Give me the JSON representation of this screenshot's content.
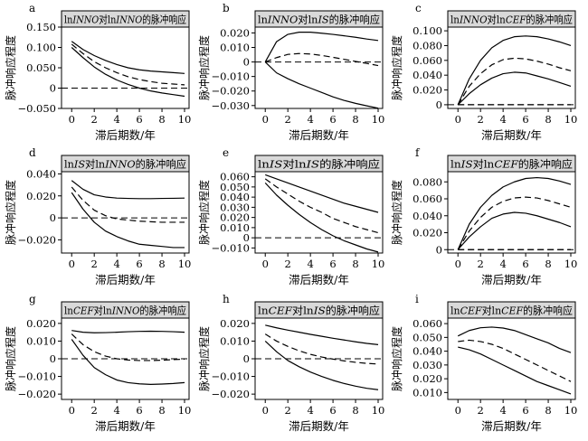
{
  "figure": {
    "ylabel": "脉冲响应程度",
    "xlabel": "滞后期数/年",
    "xticks": [
      0,
      2,
      4,
      6,
      8,
      10
    ]
  },
  "chart_data": [
    {
      "type": "line",
      "letter": "a",
      "title": "lnINNO对lnINNO的脉冲响应",
      "title_parts": [
        {
          "t": "ln",
          "i": false
        },
        {
          "t": "INNO",
          "i": true
        },
        {
          "t": "对ln",
          "i": false
        },
        {
          "t": "INNO",
          "i": true
        },
        {
          "t": "的脉冲响应",
          "i": false
        }
      ],
      "ylim": [
        -0.05,
        0.15
      ],
      "yticks": [
        -0.05,
        0,
        0.05,
        0.1,
        0.15
      ],
      "ytick_labels": [
        "−0.050",
        "0",
        "0.050",
        "0.100",
        "0.150"
      ],
      "x": [
        0,
        1,
        2,
        3,
        4,
        5,
        6,
        7,
        8,
        9,
        10
      ],
      "series": [
        {
          "role": "upper",
          "values": [
            0.115,
            0.095,
            0.08,
            0.068,
            0.058,
            0.05,
            0.045,
            0.042,
            0.04,
            0.038,
            0.036
          ]
        },
        {
          "role": "irf",
          "values": [
            0.108,
            0.085,
            0.065,
            0.05,
            0.038,
            0.028,
            0.021,
            0.016,
            0.012,
            0.01,
            0.008
          ]
        },
        {
          "role": "lower",
          "values": [
            0.1,
            0.075,
            0.052,
            0.034,
            0.02,
            0.009,
            0.0,
            -0.007,
            -0.012,
            -0.016,
            -0.02
          ]
        }
      ]
    },
    {
      "type": "line",
      "letter": "b",
      "title": "lnINNO对lnIS的脉冲响应",
      "title_parts": [
        {
          "t": "ln",
          "i": false
        },
        {
          "t": "INNO",
          "i": true
        },
        {
          "t": "对ln",
          "i": false
        },
        {
          "t": "IS",
          "i": true
        },
        {
          "t": "的脉冲响应",
          "i": false
        }
      ],
      "ylim": [
        -0.032,
        0.024
      ],
      "yticks": [
        -0.03,
        -0.02,
        -0.01,
        0,
        0.01,
        0.02
      ],
      "ytick_labels": [
        "−0.030",
        "−0.020",
        "−0.010",
        "0",
        "0.010",
        "0.020"
      ],
      "x": [
        0,
        1,
        2,
        3,
        4,
        5,
        6,
        7,
        8,
        9,
        10
      ],
      "series": [
        {
          "role": "upper",
          "values": [
            0,
            0.014,
            0.019,
            0.0205,
            0.0205,
            0.0198,
            0.019,
            0.018,
            0.017,
            0.0158,
            0.0148
          ]
        },
        {
          "role": "irf",
          "values": [
            0,
            0.003,
            0.0052,
            0.0058,
            0.0055,
            0.0045,
            0.0032,
            0.0018,
            0.0004,
            -0.001,
            -0.0025
          ]
        },
        {
          "role": "lower",
          "values": [
            0,
            -0.0075,
            -0.0115,
            -0.015,
            -0.018,
            -0.021,
            -0.024,
            -0.0265,
            -0.0285,
            -0.0302,
            -0.0318
          ]
        }
      ]
    },
    {
      "type": "line",
      "letter": "c",
      "title": "lnINNO对lnCEF的脉冲响应",
      "title_parts": [
        {
          "t": "ln",
          "i": false
        },
        {
          "t": "INNO",
          "i": true
        },
        {
          "t": "对ln",
          "i": false
        },
        {
          "t": "CEF",
          "i": true
        },
        {
          "t": "的脉冲响应",
          "i": false
        }
      ],
      "ylim": [
        -0.005,
        0.105
      ],
      "yticks": [
        0,
        0.02,
        0.04,
        0.06,
        0.08,
        0.1
      ],
      "ytick_labels": [
        "0",
        "0.020",
        "0.040",
        "0.060",
        "0.080",
        "0.100"
      ],
      "x": [
        0,
        1,
        2,
        3,
        4,
        5,
        6,
        7,
        8,
        9,
        10
      ],
      "series": [
        {
          "role": "upper",
          "values": [
            0,
            0.035,
            0.06,
            0.077,
            0.087,
            0.092,
            0.093,
            0.092,
            0.089,
            0.085,
            0.08
          ]
        },
        {
          "role": "irf",
          "values": [
            0,
            0.025,
            0.042,
            0.054,
            0.061,
            0.063,
            0.062,
            0.059,
            0.055,
            0.05,
            0.046
          ]
        },
        {
          "role": "lower",
          "values": [
            0,
            0.015,
            0.027,
            0.036,
            0.042,
            0.044,
            0.043,
            0.039,
            0.035,
            0.03,
            0.025
          ]
        },
        {
          "role": "zero",
          "values": [
            0,
            0,
            0,
            0,
            0,
            0,
            0,
            0,
            0,
            0,
            0
          ]
        }
      ]
    },
    {
      "type": "line",
      "letter": "d",
      "title": "lnIS对lnINNO的脉冲响应",
      "title_parts": [
        {
          "t": "ln",
          "i": false
        },
        {
          "t": "IS",
          "i": true
        },
        {
          "t": "对ln",
          "i": false
        },
        {
          "t": "INNO",
          "i": true
        },
        {
          "t": "的脉冲响应",
          "i": false
        }
      ],
      "ylim": [
        -0.032,
        0.042
      ],
      "yticks": [
        -0.02,
        0,
        0.02,
        0.04
      ],
      "ytick_labels": [
        "−0.020",
        "0",
        "0.020",
        "0.040"
      ],
      "x": [
        0,
        1,
        2,
        3,
        4,
        5,
        6,
        7,
        8,
        9,
        10
      ],
      "series": [
        {
          "role": "upper",
          "values": [
            0.034,
            0.026,
            0.021,
            0.019,
            0.018,
            0.0177,
            0.0175,
            0.0175,
            0.0177,
            0.0178,
            0.018
          ]
        },
        {
          "role": "irf",
          "values": [
            0.028,
            0.016,
            0.007,
            0.002,
            -0.001,
            -0.002,
            -0.003,
            -0.0035,
            -0.004,
            -0.004,
            -0.004
          ]
        },
        {
          "role": "lower",
          "values": [
            0.023,
            0.008,
            -0.004,
            -0.012,
            -0.017,
            -0.021,
            -0.024,
            -0.025,
            -0.026,
            -0.027,
            -0.027
          ]
        }
      ]
    },
    {
      "type": "line",
      "letter": "e",
      "title": "lnIS对lnIS的脉冲响应",
      "title_parts": [
        {
          "t": "ln",
          "i": false
        },
        {
          "t": "IS",
          "i": true
        },
        {
          "t": "对ln",
          "i": false
        },
        {
          "t": "IS",
          "i": true
        },
        {
          "t": "的脉冲响应",
          "i": false
        }
      ],
      "ylim": [
        -0.015,
        0.065
      ],
      "yticks": [
        -0.01,
        0,
        0.01,
        0.02,
        0.03,
        0.04,
        0.05,
        0.06
      ],
      "ytick_labels": [
        "−0.010",
        "0",
        "0.010",
        "0.020",
        "0.030",
        "0.040",
        "0.050",
        "0.060"
      ],
      "x": [
        0,
        1,
        2,
        3,
        4,
        5,
        6,
        7,
        8,
        9,
        10
      ],
      "series": [
        {
          "role": "upper",
          "values": [
            0.062,
            0.058,
            0.054,
            0.05,
            0.046,
            0.042,
            0.038,
            0.034,
            0.031,
            0.028,
            0.025
          ]
        },
        {
          "role": "irf",
          "values": [
            0.058,
            0.05,
            0.043,
            0.036,
            0.03,
            0.025,
            0.019,
            0.015,
            0.011,
            0.008,
            0.005
          ]
        },
        {
          "role": "lower",
          "values": [
            0.054,
            0.042,
            0.032,
            0.023,
            0.015,
            0.008,
            0.002,
            -0.003,
            -0.007,
            -0.011,
            -0.014
          ]
        }
      ]
    },
    {
      "type": "line",
      "letter": "f",
      "title": "lnIS对lnCEF的脉冲响应",
      "title_parts": [
        {
          "t": "ln",
          "i": false
        },
        {
          "t": "IS",
          "i": true
        },
        {
          "t": "对ln",
          "i": false
        },
        {
          "t": "CEF",
          "i": true
        },
        {
          "t": "的脉冲响应",
          "i": false
        }
      ],
      "ylim": [
        -0.004,
        0.092
      ],
      "yticks": [
        0,
        0.02,
        0.04,
        0.06,
        0.08
      ],
      "ytick_labels": [
        "0",
        "0.020",
        "0.040",
        "0.060",
        "0.080"
      ],
      "x": [
        0,
        1,
        2,
        3,
        4,
        5,
        6,
        7,
        8,
        9,
        10
      ],
      "series": [
        {
          "role": "upper",
          "values": [
            0,
            0.03,
            0.05,
            0.064,
            0.074,
            0.08,
            0.084,
            0.085,
            0.084,
            0.081,
            0.077
          ]
        },
        {
          "role": "irf",
          "values": [
            0,
            0.022,
            0.038,
            0.05,
            0.057,
            0.061,
            0.062,
            0.061,
            0.058,
            0.054,
            0.05
          ]
        },
        {
          "role": "lower",
          "values": [
            0,
            0.015,
            0.027,
            0.037,
            0.042,
            0.044,
            0.043,
            0.04,
            0.036,
            0.032,
            0.027
          ]
        },
        {
          "role": "zero",
          "values": [
            0,
            0,
            0,
            0,
            0,
            0,
            0,
            0,
            0,
            0,
            0
          ]
        }
      ]
    },
    {
      "type": "line",
      "letter": "g",
      "title": "lnCEF对lnINNO的脉冲响应",
      "title_parts": [
        {
          "t": "ln",
          "i": false
        },
        {
          "t": "CEF",
          "i": true
        },
        {
          "t": "对ln",
          "i": false
        },
        {
          "t": "INNO",
          "i": true
        },
        {
          "t": "的脉冲响应",
          "i": false
        }
      ],
      "ylim": [
        -0.023,
        0.023
      ],
      "yticks": [
        -0.02,
        -0.01,
        0,
        0.01,
        0.02
      ],
      "ytick_labels": [
        "−0.020",
        "−0.010",
        "0",
        "0.010",
        "0.020"
      ],
      "x": [
        0,
        1,
        2,
        3,
        4,
        5,
        6,
        7,
        8,
        9,
        10
      ],
      "series": [
        {
          "role": "upper",
          "values": [
            0.016,
            0.015,
            0.0147,
            0.0148,
            0.015,
            0.0153,
            0.0155,
            0.0156,
            0.0155,
            0.0153,
            0.015
          ]
        },
        {
          "role": "irf",
          "values": [
            0.014,
            0.008,
            0.004,
            0.0015,
            0.0,
            -0.0007,
            -0.001,
            -0.001,
            -0.0008,
            -0.0005,
            -0.0002
          ]
        },
        {
          "role": "lower",
          "values": [
            0.011,
            0.002,
            -0.005,
            -0.009,
            -0.012,
            -0.0135,
            -0.0142,
            -0.0145,
            -0.0143,
            -0.014,
            -0.0135
          ]
        }
      ]
    },
    {
      "type": "line",
      "letter": "h",
      "title": "lnCEF对lnIS的脉冲响应",
      "title_parts": [
        {
          "t": "ln",
          "i": false
        },
        {
          "t": "CEF",
          "i": true
        },
        {
          "t": "对ln",
          "i": false
        },
        {
          "t": "IS",
          "i": true
        },
        {
          "t": "的脉冲响应",
          "i": false
        }
      ],
      "ylim": [
        -0.023,
        0.023
      ],
      "yticks": [
        -0.02,
        -0.01,
        0,
        0.01,
        0.02
      ],
      "ytick_labels": [
        "−0.020",
        "−0.010",
        "0",
        "0.010",
        "0.020"
      ],
      "x": [
        0,
        1,
        2,
        3,
        4,
        5,
        6,
        7,
        8,
        9,
        10
      ],
      "series": [
        {
          "role": "upper",
          "values": [
            0.019,
            0.0175,
            0.0162,
            0.015,
            0.0138,
            0.0127,
            0.0116,
            0.0106,
            0.0096,
            0.0087,
            0.008
          ]
        },
        {
          "role": "irf",
          "values": [
            0.014,
            0.01,
            0.007,
            0.0045,
            0.0025,
            0.001,
            -0.0002,
            -0.0012,
            -0.002,
            -0.0026,
            -0.003
          ]
        },
        {
          "role": "lower",
          "values": [
            0.01,
            0.004,
            -0.001,
            -0.0045,
            -0.0075,
            -0.01,
            -0.0122,
            -0.014,
            -0.0155,
            -0.0167,
            -0.0175
          ]
        }
      ]
    },
    {
      "type": "line",
      "letter": "i",
      "title": "lnCEF对lnCEF的脉冲响应",
      "title_parts": [
        {
          "t": "ln",
          "i": false
        },
        {
          "t": "CEF",
          "i": true
        },
        {
          "t": "对ln",
          "i": false
        },
        {
          "t": "CEF",
          "i": true
        },
        {
          "t": "的脉冲响应",
          "i": false
        }
      ],
      "ylim": [
        0.005,
        0.064
      ],
      "yticks": [
        0.01,
        0.02,
        0.03,
        0.04,
        0.05,
        0.06
      ],
      "ytick_labels": [
        "0.010",
        "0.020",
        "0.030",
        "0.040",
        "0.050",
        "0.060"
      ],
      "x": [
        0,
        1,
        2,
        3,
        4,
        5,
        6,
        7,
        8,
        9,
        10
      ],
      "series": [
        {
          "role": "upper",
          "values": [
            0.051,
            0.055,
            0.057,
            0.0575,
            0.0568,
            0.055,
            0.052,
            0.049,
            0.046,
            0.042,
            0.039
          ]
        },
        {
          "role": "irf",
          "values": [
            0.047,
            0.048,
            0.047,
            0.045,
            0.042,
            0.038,
            0.034,
            0.03,
            0.026,
            0.022,
            0.018
          ]
        },
        {
          "role": "lower",
          "values": [
            0.043,
            0.041,
            0.038,
            0.034,
            0.03,
            0.026,
            0.022,
            0.018,
            0.015,
            0.012,
            0.009
          ]
        }
      ]
    }
  ]
}
